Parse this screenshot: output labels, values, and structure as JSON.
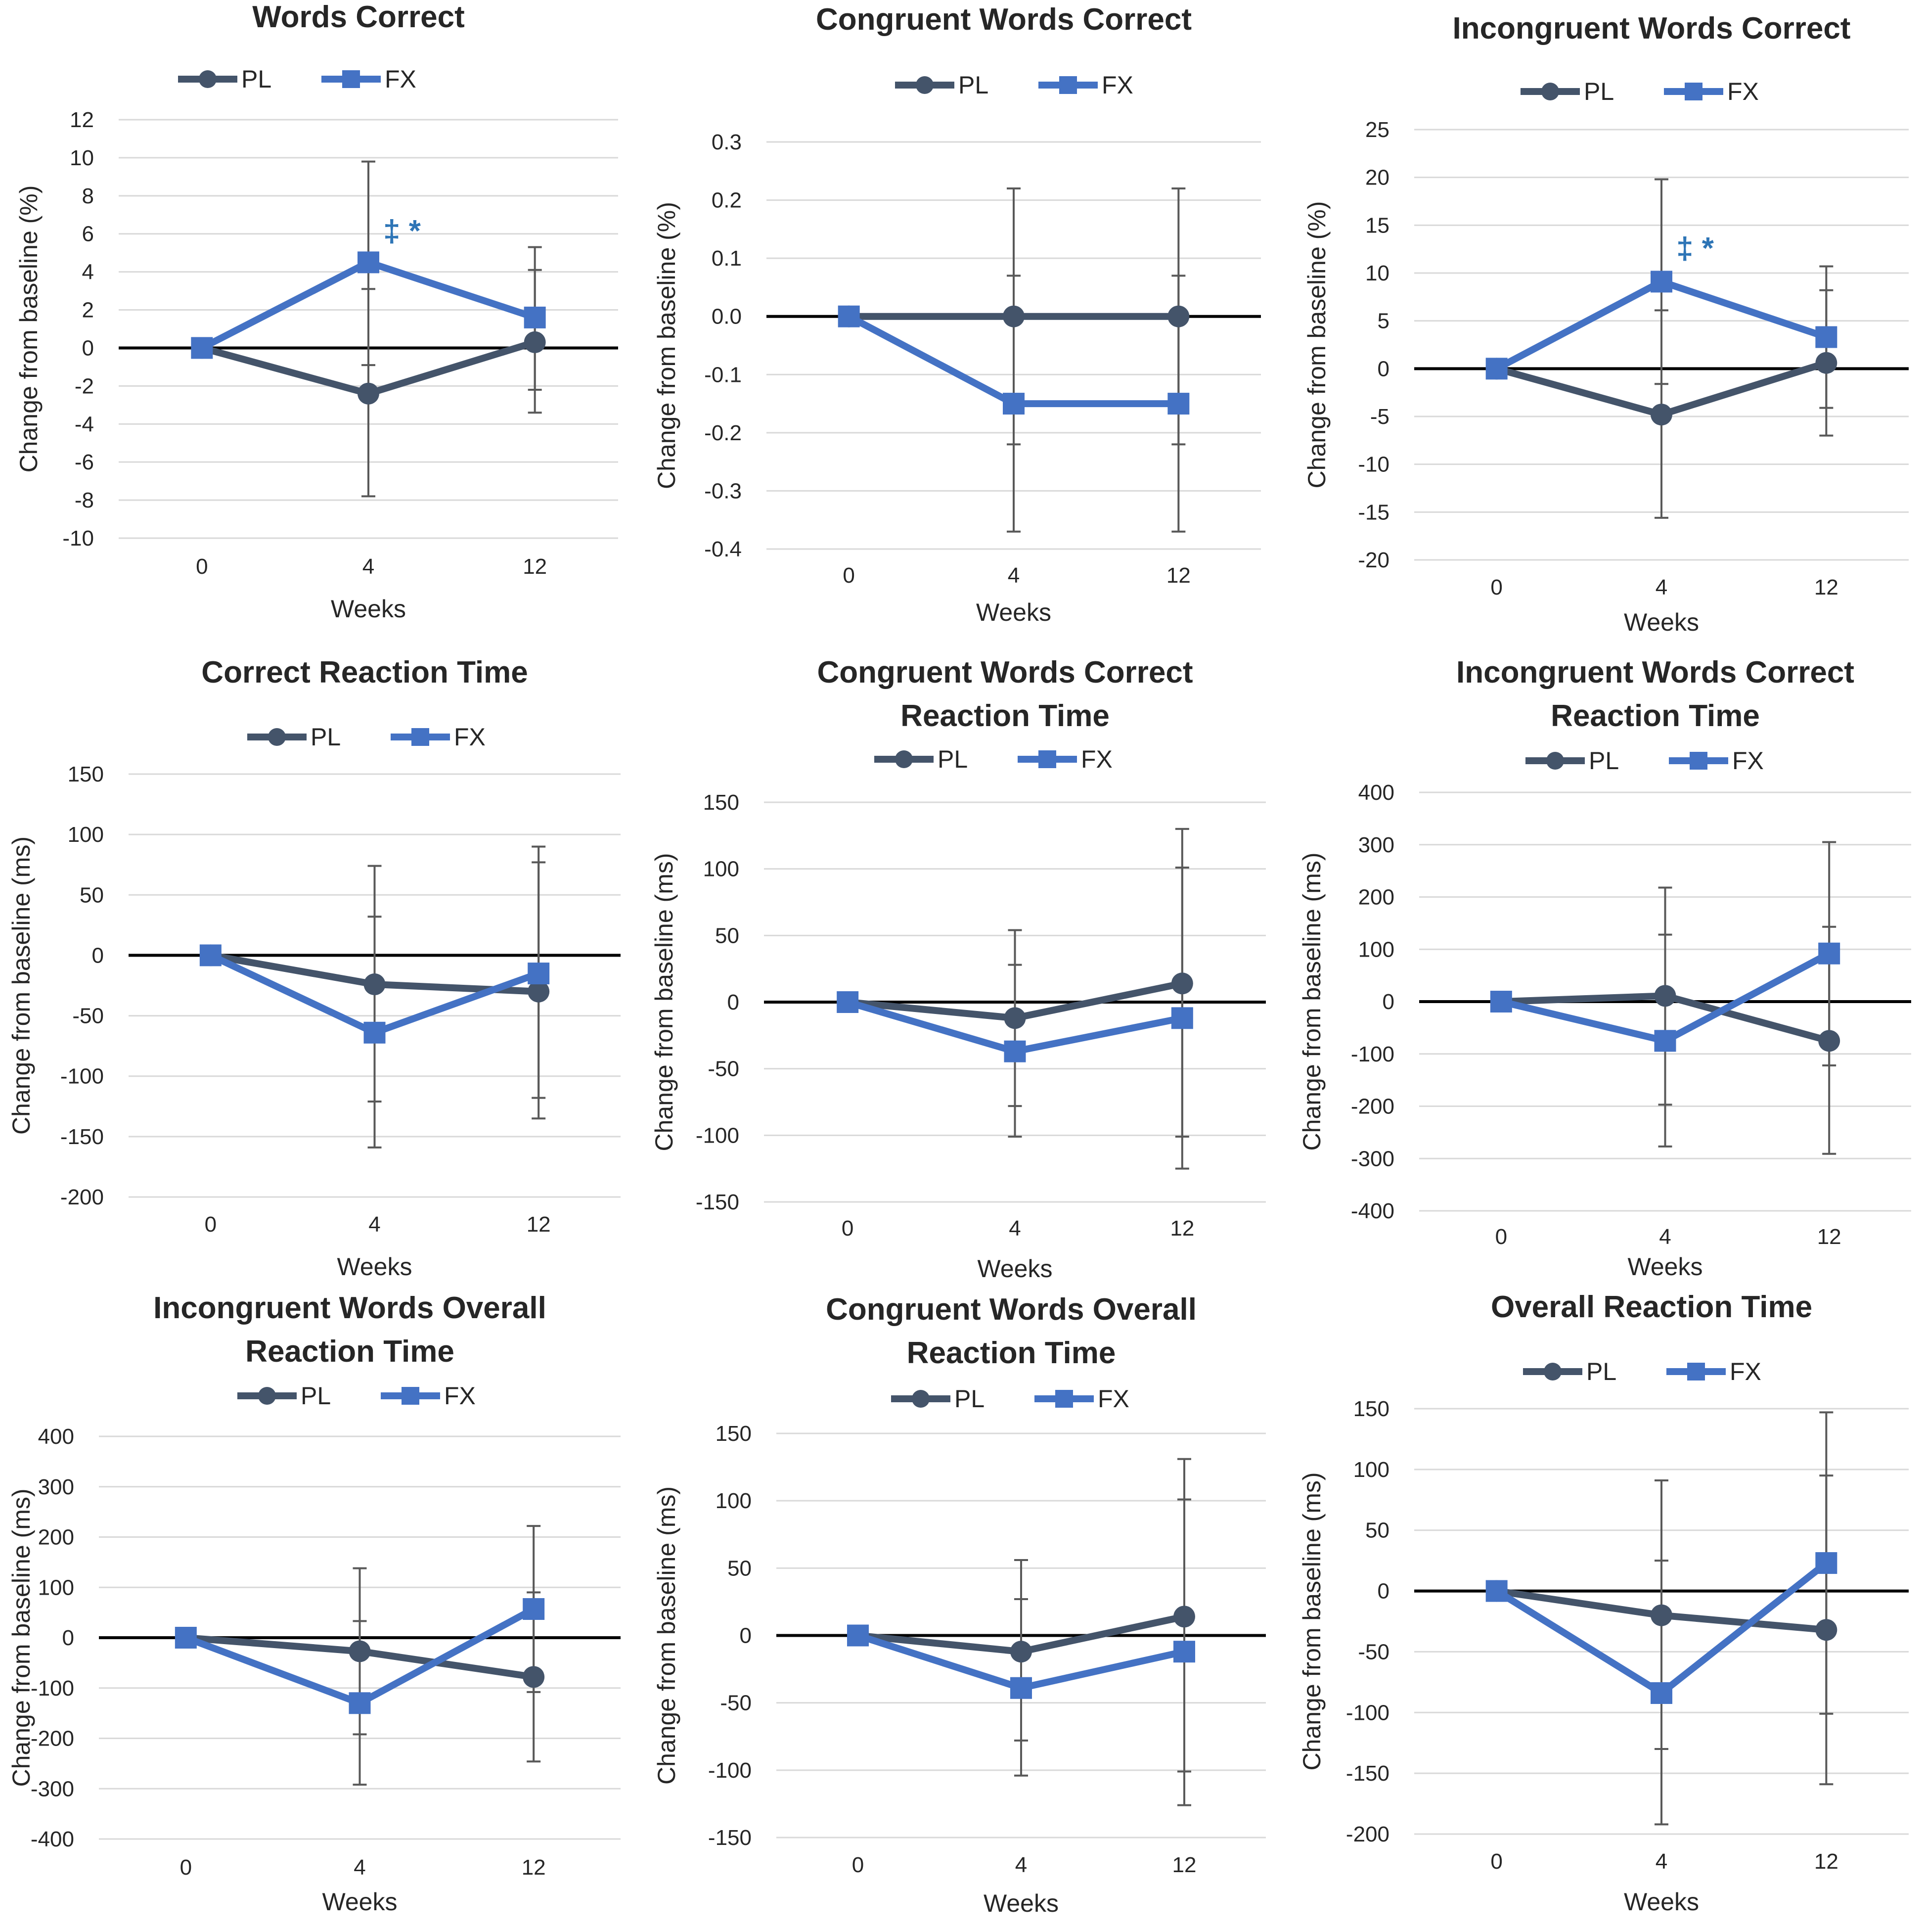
{
  "colors": {
    "PL": "#44546a",
    "FX": "#4472c4",
    "grid": "#d9d9d9",
    "zero": "#000000",
    "error": "#595959",
    "sig": "#2e75b6"
  },
  "chart_data": [
    {
      "type": "line",
      "title_lines": [
        "Words Correct"
      ],
      "xlabel": "Weeks",
      "ylabel": "Change from baseline (%)",
      "categories": [
        "0",
        "4",
        "12"
      ],
      "ylim": [
        -10,
        12
      ],
      "yticks": [
        -10,
        -8,
        -6,
        -4,
        -2,
        0,
        2,
        4,
        6,
        8,
        10,
        12
      ],
      "ytick_labels": [
        "-10",
        "-8",
        "-6",
        "-4",
        "-2",
        "0",
        "2",
        "4",
        "6",
        "8",
        "10",
        "12"
      ],
      "legend": [
        "PL",
        "FX"
      ],
      "series": [
        {
          "name": "PL",
          "values": [
            0,
            -2.4,
            0.3
          ],
          "err_low": [
            null,
            -7.8,
            -3.4
          ],
          "err_high": [
            null,
            3.1,
            4.1
          ]
        },
        {
          "name": "FX",
          "values": [
            0,
            4.5,
            1.6
          ],
          "err_low": [
            null,
            -0.9,
            -2.2
          ],
          "err_high": [
            null,
            9.8,
            5.3
          ]
        }
      ],
      "annotations": [
        {
          "text": "‡ *",
          "category": "4",
          "y": 5.6
        }
      ]
    },
    {
      "type": "line",
      "title_lines": [
        "Congruent Words Correct"
      ],
      "xlabel": "Weeks",
      "ylabel": "Change from baseline (%)",
      "categories": [
        "0",
        "4",
        "12"
      ],
      "ylim": [
        -0.4,
        0.3
      ],
      "yticks": [
        -0.4,
        -0.3,
        -0.2,
        -0.1,
        0,
        0.1,
        0.2,
        0.3
      ],
      "ytick_labels": [
        "-0.4",
        "-0.3",
        "-0.2",
        "-0.1",
        "0.0",
        "0.1",
        "0.2",
        "0.3"
      ],
      "legend": [
        "PL",
        "FX"
      ],
      "series": [
        {
          "name": "PL",
          "values": [
            0,
            0,
            0
          ],
          "err_low": [
            null,
            -0.22,
            -0.22
          ],
          "err_high": [
            null,
            0.22,
            0.22
          ]
        },
        {
          "name": "FX",
          "values": [
            0,
            -0.15,
            -0.15
          ],
          "err_low": [
            null,
            -0.37,
            -0.37
          ],
          "err_high": [
            null,
            0.07,
            0.07
          ]
        }
      ],
      "annotations": []
    },
    {
      "type": "line",
      "title_lines": [
        "Incongruent Words Correct"
      ],
      "xlabel": "Weeks",
      "ylabel": "Change from baseline (%)",
      "categories": [
        "0",
        "4",
        "12"
      ],
      "ylim": [
        -20,
        25
      ],
      "yticks": [
        -20,
        -15,
        -10,
        -5,
        0,
        5,
        10,
        15,
        20,
        25
      ],
      "ytick_labels": [
        "-20",
        "-15",
        "-10",
        "-5",
        "0",
        "5",
        "10",
        "15",
        "20",
        "25"
      ],
      "legend": [
        "PL",
        "FX"
      ],
      "series": [
        {
          "name": "PL",
          "values": [
            0,
            -4.8,
            0.6
          ],
          "err_low": [
            null,
            -15.6,
            -7.0
          ],
          "err_high": [
            null,
            6.1,
            8.2
          ]
        },
        {
          "name": "FX",
          "values": [
            0,
            9.1,
            3.3
          ],
          "err_low": [
            null,
            -1.6,
            -4.1
          ],
          "err_high": [
            null,
            19.8,
            10.7
          ]
        }
      ],
      "annotations": [
        {
          "text": "‡ *",
          "category": "4",
          "y": 11.5
        }
      ]
    },
    {
      "type": "line",
      "title_lines": [
        "Correct Reaction Time"
      ],
      "xlabel": "Weeks",
      "ylabel": "Change from baseline (ms)",
      "categories": [
        "0",
        "4",
        "12"
      ],
      "ylim": [
        -200,
        150
      ],
      "yticks": [
        -200,
        -150,
        -100,
        -50,
        0,
        50,
        100,
        150
      ],
      "ytick_labels": [
        "-200",
        "-150",
        "-100",
        "-50",
        "0",
        "50",
        "100",
        "150"
      ],
      "legend": [
        "PL",
        "FX"
      ],
      "series": [
        {
          "name": "PL",
          "values": [
            0,
            -24,
            -30
          ],
          "err_low": [
            null,
            -121,
            -135
          ],
          "err_high": [
            null,
            74,
            77
          ]
        },
        {
          "name": "FX",
          "values": [
            0,
            -64,
            -15
          ],
          "err_low": [
            null,
            -159,
            -118
          ],
          "err_high": [
            null,
            32,
            90
          ]
        }
      ],
      "annotations": []
    },
    {
      "type": "line",
      "title_lines": [
        "Congruent Words Correct",
        "Reaction Time"
      ],
      "xlabel": "Weeks",
      "ylabel": "Change from baseline (ms)",
      "categories": [
        "0",
        "4",
        "12"
      ],
      "ylim": [
        -150,
        150
      ],
      "yticks": [
        -150,
        -100,
        -50,
        0,
        50,
        100,
        150
      ],
      "ytick_labels": [
        "-150",
        "-100",
        "-50",
        "0",
        "50",
        "100",
        "150"
      ],
      "legend": [
        "PL",
        "FX"
      ],
      "series": [
        {
          "name": "PL",
          "values": [
            0,
            -12,
            14
          ],
          "err_low": [
            null,
            -78,
            -101
          ],
          "err_high": [
            null,
            54,
            130
          ]
        },
        {
          "name": "FX",
          "values": [
            0,
            -37,
            -12
          ],
          "err_low": [
            null,
            -101,
            -125
          ],
          "err_high": [
            null,
            28,
            101
          ]
        }
      ],
      "annotations": []
    },
    {
      "type": "line",
      "title_lines": [
        "Incongruent Words Correct",
        "Reaction Time"
      ],
      "xlabel": "Weeks",
      "ylabel": "Change from baseline (ms)",
      "categories": [
        "0",
        "4",
        "12"
      ],
      "ylim": [
        -400,
        400
      ],
      "yticks": [
        -400,
        -300,
        -200,
        -100,
        0,
        100,
        200,
        300,
        400
      ],
      "ytick_labels": [
        "-400",
        "-300",
        "-200",
        "-100",
        "0",
        "100",
        "200",
        "300",
        "400"
      ],
      "legend": [
        "PL",
        "FX"
      ],
      "series": [
        {
          "name": "PL",
          "values": [
            0,
            11,
            -75
          ],
          "err_low": [
            null,
            -197,
            -291
          ],
          "err_high": [
            null,
            218,
            143
          ]
        },
        {
          "name": "FX",
          "values": [
            0,
            -75,
            92
          ],
          "err_low": [
            null,
            -277,
            -122
          ],
          "err_high": [
            null,
            128,
            305
          ]
        }
      ],
      "annotations": []
    },
    {
      "type": "line",
      "title_lines": [
        "Incongruent Words Overall",
        "Reaction Time"
      ],
      "xlabel": "Weeks",
      "ylabel": "Change from baseline (ms)",
      "categories": [
        "0",
        "4",
        "12"
      ],
      "ylim": [
        -400,
        400
      ],
      "yticks": [
        -400,
        -300,
        -200,
        -100,
        0,
        100,
        200,
        300,
        400
      ],
      "ytick_labels": [
        "-400",
        "-300",
        "-200",
        "-100",
        "0",
        "100",
        "200",
        "300",
        "400"
      ],
      "legend": [
        "PL",
        "FX"
      ],
      "series": [
        {
          "name": "PL",
          "values": [
            0,
            -27,
            -78
          ],
          "err_low": [
            null,
            -192,
            -246
          ],
          "err_high": [
            null,
            138,
            90
          ]
        },
        {
          "name": "FX",
          "values": [
            0,
            -130,
            57
          ],
          "err_low": [
            null,
            -292,
            -108
          ],
          "err_high": [
            null,
            33,
            222
          ]
        }
      ],
      "annotations": []
    },
    {
      "type": "line",
      "title_lines": [
        "Congruent Words Overall",
        "Reaction Time"
      ],
      "xlabel": "Weeks",
      "ylabel": "Change from baseline (ms)",
      "categories": [
        "0",
        "4",
        "12"
      ],
      "ylim": [
        -150,
        150
      ],
      "yticks": [
        -150,
        -100,
        -50,
        0,
        50,
        100,
        150
      ],
      "ytick_labels": [
        "-150",
        "-100",
        "-50",
        "0",
        "50",
        "100",
        "150"
      ],
      "legend": [
        "PL",
        "FX"
      ],
      "series": [
        {
          "name": "PL",
          "values": [
            0,
            -12,
            14
          ],
          "err_low": [
            null,
            -78,
            -101
          ],
          "err_high": [
            null,
            56,
            131
          ]
        },
        {
          "name": "FX",
          "values": [
            0,
            -39,
            -12
          ],
          "err_low": [
            null,
            -104,
            -126
          ],
          "err_high": [
            null,
            27,
            101
          ]
        }
      ],
      "annotations": []
    },
    {
      "type": "line",
      "title_lines": [
        "Overall Reaction Time"
      ],
      "xlabel": "Weeks",
      "ylabel": "Change from baseline (ms)",
      "categories": [
        "0",
        "4",
        "12"
      ],
      "ylim": [
        -200,
        150
      ],
      "yticks": [
        -200,
        -150,
        -100,
        -50,
        0,
        50,
        100,
        150
      ],
      "ytick_labels": [
        "-200",
        "-150",
        "-100",
        "-50",
        "0",
        "50",
        "100",
        "150"
      ],
      "legend": [
        "PL",
        "FX"
      ],
      "series": [
        {
          "name": "PL",
          "values": [
            0,
            -20,
            -32
          ],
          "err_low": [
            null,
            -130,
            -159
          ],
          "err_high": [
            null,
            91,
            95
          ]
        },
        {
          "name": "FX",
          "values": [
            0,
            -84,
            23
          ],
          "err_low": [
            null,
            -192,
            -101
          ],
          "err_high": [
            null,
            25,
            147
          ]
        }
      ],
      "annotations": []
    }
  ]
}
